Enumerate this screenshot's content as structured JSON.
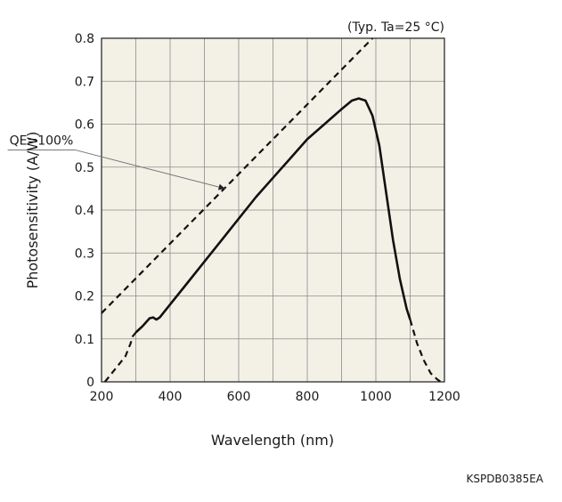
{
  "chart_data": {
    "type": "line",
    "condition_note": "(Typ. Ta=25 °C)",
    "xlabel": "Wavelength (nm)",
    "ylabel": "Photosensitivity (A/W)",
    "xlim": [
      200,
      1200
    ],
    "ylim": [
      0,
      0.8
    ],
    "xticks": [
      200,
      400,
      600,
      800,
      1000,
      1200
    ],
    "xtick_labels": [
      "200",
      "400",
      "600",
      "800",
      "1000",
      "1200"
    ],
    "yticks": [
      0,
      0.1,
      0.2,
      0.3,
      0.4,
      0.5,
      0.6,
      0.7,
      0.8
    ],
    "ytick_labels": [
      "0",
      "0.1",
      "0.2",
      "0.3",
      "0.4",
      "0.5",
      "0.6",
      "0.7",
      "0.8"
    ],
    "minor_x_step": 100,
    "grid": true,
    "plot_background": "#f3f1e6",
    "series": [
      {
        "style": "dashed",
        "segment": "low-wavelength tail",
        "x": [
          210,
          230,
          250,
          270,
          285,
          290,
          300
        ],
        "y": [
          0.0,
          0.02,
          0.04,
          0.06,
          0.09,
          0.105,
          0.115
        ]
      },
      {
        "style": "solid",
        "segment": "main response",
        "x": [
          300,
          320,
          340,
          350,
          360,
          370,
          400,
          450,
          500,
          550,
          600,
          650,
          700,
          750,
          800,
          850,
          900,
          930,
          950,
          970,
          990,
          1010,
          1030,
          1050,
          1070,
          1090,
          1100
        ],
        "y": [
          0.115,
          0.13,
          0.148,
          0.15,
          0.145,
          0.15,
          0.18,
          0.23,
          0.28,
          0.33,
          0.38,
          0.43,
          0.475,
          0.52,
          0.565,
          0.6,
          0.635,
          0.655,
          0.66,
          0.655,
          0.62,
          0.55,
          0.44,
          0.33,
          0.24,
          0.17,
          0.145
        ]
      },
      {
        "style": "dashed",
        "segment": "high-wavelength tail",
        "x": [
          1100,
          1120,
          1140,
          1160,
          1180,
          1190
        ],
        "y": [
          0.145,
          0.09,
          0.05,
          0.02,
          0.005,
          0.0
        ]
      },
      {
        "style": "dashed",
        "segment": "QE=100% reference",
        "x": [
          200,
          990
        ],
        "y": [
          0.16,
          0.8
        ]
      }
    ],
    "annotations": [
      {
        "text": "QE=100%",
        "x": 290,
        "y": 0.54,
        "points_to_x": 560,
        "points_to_y": 0.45
      }
    ],
    "figure_code": "KSPDB0385EA"
  }
}
